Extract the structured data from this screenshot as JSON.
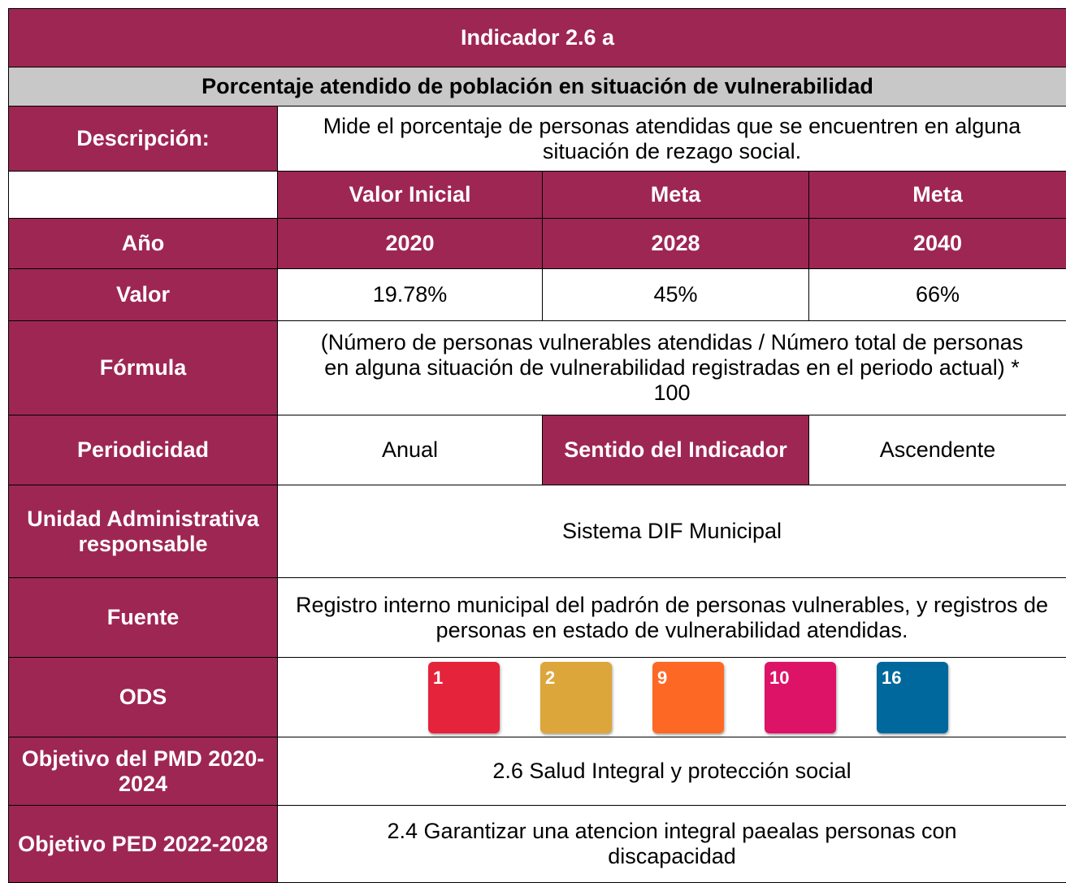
{
  "header": {
    "title": "Indicador 2.6 a",
    "subtitle": "Porcentaje atendido de población en situación de vulnerabilidad"
  },
  "description": {
    "label": "Descripción:",
    "text": "Mide el porcentaje de personas atendidas que se encuentren en alguna situación de rezago social."
  },
  "columns": [
    "Valor Inicial",
    "Meta",
    "Meta"
  ],
  "year": {
    "label": "Año",
    "values": [
      "2020",
      "2028",
      "2040"
    ]
  },
  "value": {
    "label": "Valor",
    "values": [
      "19.78%",
      "45%",
      "66%"
    ]
  },
  "formula": {
    "label": "Fórmula",
    "text": "(Número de personas vulnerables atendidas / Número total de personas en alguna situación de vulnerabilidad registradas en el periodo actual) * 100"
  },
  "periodicity": {
    "label": "Periodicidad",
    "text": "Anual",
    "direction_label": "Sentido del Indicador",
    "direction": "Ascendente"
  },
  "unit": {
    "label": "Unidad Administrativa responsable",
    "text": "Sistema DIF Municipal"
  },
  "source": {
    "label": "Fuente",
    "text": "Registro interno municipal del padrón de personas vulnerables, y registros de personas en estado de vulnerabilidad atendidas."
  },
  "ods": {
    "label": "ODS",
    "icons": [
      {
        "number": "1",
        "color": "#e5243b"
      },
      {
        "number": "2",
        "color": "#dda63a"
      },
      {
        "number": "9",
        "color": "#fd6925"
      },
      {
        "number": "10",
        "color": "#dd1367"
      },
      {
        "number": "16",
        "color": "#00689d"
      }
    ]
  },
  "pmd": {
    "label": "Objetivo del PMD 2020-2024",
    "text": "2.6 Salud Integral y protección social"
  },
  "ped": {
    "label": "Objetivo PED 2022-2028",
    "text": "2.4 Garantizar una atencion integral paealas personas con discapacidad"
  }
}
